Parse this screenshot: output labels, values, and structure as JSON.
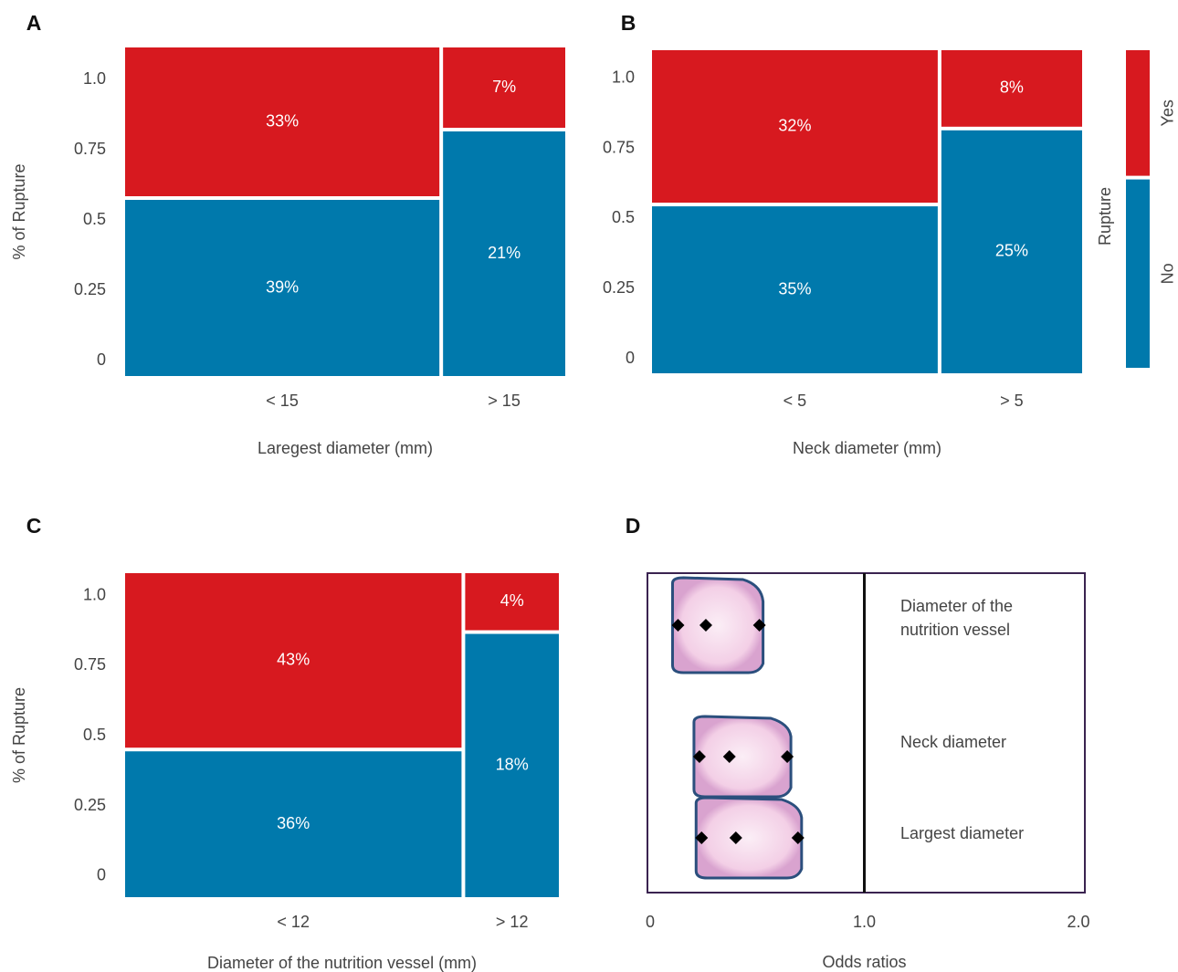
{
  "chart_data": [
    {
      "type": "mosaic",
      "panel": "A",
      "x_label": "Laregest diameter (mm)",
      "y_label": "% of Rupture",
      "categories": [
        "< 15",
        "> 15"
      ],
      "series": [
        {
          "name": "No",
          "color": "#0079ac",
          "values": [
            39,
            21
          ],
          "value_labels": [
            "39%",
            "21%"
          ]
        },
        {
          "name": "Yes",
          "color": "#d7191f",
          "values": [
            33,
            7
          ],
          "value_labels": [
            "33%",
            "7%"
          ]
        }
      ],
      "ylim": [
        -0.055,
        1.115
      ],
      "yticks": [
        0,
        0.25,
        0.5,
        0.75,
        {
          "value": 1,
          "label": "1.0"
        }
      ]
    },
    {
      "type": "mosaic",
      "panel": "B",
      "x_label": "Neck diameter (mm)",
      "legend_title": "Rupture",
      "categories": [
        "< 5",
        "> 5"
      ],
      "series": [
        {
          "name": "No",
          "color": "#0079ac",
          "values": [
            35,
            25
          ],
          "value_labels": [
            "35%",
            "25%"
          ]
        },
        {
          "name": "Yes",
          "color": "#d7191f",
          "values": [
            32,
            8
          ],
          "value_labels": [
            "32%",
            "8%"
          ]
        }
      ],
      "ylim": [
        -0.052,
        1.1
      ],
      "yticks": [
        0,
        0.25,
        0.5,
        0.75,
        {
          "value": 1,
          "label": "1.0"
        }
      ]
    },
    {
      "type": "mosaic",
      "panel": "C",
      "x_label": "Diameter of the nutrition vessel (mm)",
      "y_label": "% of Rupture",
      "categories": [
        "< 12",
        "> 12"
      ],
      "series": [
        {
          "name": "No",
          "color": "#0079ac",
          "values": [
            36,
            18
          ],
          "value_labels": [
            "36%",
            "18%"
          ]
        },
        {
          "name": "Yes",
          "color": "#d7191f",
          "values": [
            43,
            4
          ],
          "value_labels": [
            "43%",
            "4%"
          ]
        }
      ],
      "ylim": [
        -0.075,
        1.08
      ],
      "yticks": [
        0,
        0.25,
        0.5,
        0.75,
        {
          "value": 1,
          "label": "1.0"
        }
      ]
    },
    {
      "type": "odds",
      "panel": "D",
      "x_label": "Odds ratios",
      "categories": [
        "Diameter of the\nnutrition vessel",
        "Neck diameter",
        "Largest  diameter"
      ],
      "values": [
        [
          0.13,
          0.26,
          0.51
        ],
        [
          0.23,
          0.37,
          0.64
        ],
        [
          0.24,
          0.4,
          0.69
        ]
      ],
      "reference_line": 1,
      "xlim": [
        0,
        2
      ],
      "xticks": [
        0,
        {
          "value": 1,
          "label": "1.0"
        },
        {
          "value": 2,
          "label": "2.0"
        }
      ]
    }
  ]
}
